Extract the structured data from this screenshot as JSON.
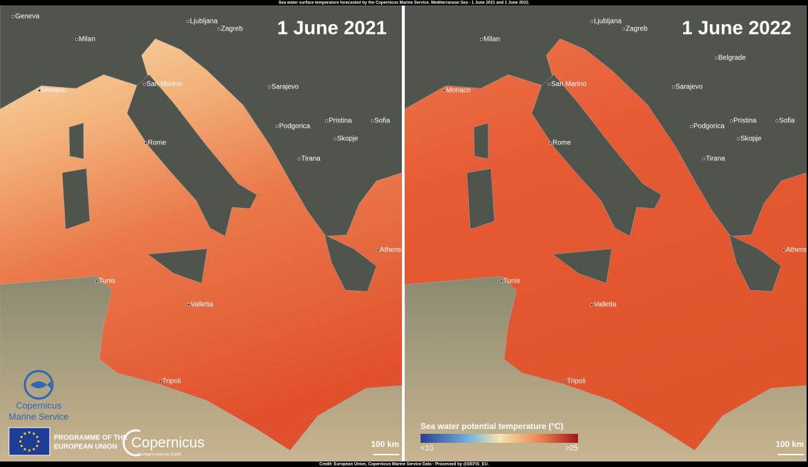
{
  "header": {
    "caption": "Sea water surface temperature forecasted by the Copernicus Marine Service. Mediterranean Sea - 1 June 2021 and 1 June 2022."
  },
  "panels": [
    {
      "title": "1 June 2021",
      "cities": [
        "Geneva",
        "Milan",
        "Ljubljana",
        "Zagreb",
        "Monaco",
        "San Marino",
        "Sarajevo",
        "Rome",
        "Podgorica",
        "Pristina",
        "Sofia",
        "Skopje",
        "Tirana",
        "Athens",
        "Tunis",
        "Valletta",
        "Tripoli"
      ],
      "scale": "100 km"
    },
    {
      "title": "1 June 2022",
      "cities": [
        "Milan",
        "Ljubljana",
        "Zagreb",
        "Belgrade",
        "Monaco",
        "San Marino",
        "Sarajevo",
        "Rome",
        "Podgorica",
        "Pristina",
        "Sofia",
        "Skopje",
        "Tirana",
        "Athens",
        "Tunis",
        "Valletta",
        "Tripoli"
      ],
      "scale": "100 km"
    }
  ],
  "legend": {
    "title": "Sea water potential temperature  (°C)",
    "min_label": "<10",
    "max_label": ">25"
  },
  "logos": {
    "marine_line1": "Copernicus",
    "marine_line2": "Marine Service",
    "eu_line1": "PROGRAMME OF THE",
    "eu_line2": "EUROPEAN UNION",
    "copernicus": "Copernicus",
    "copernicus_tagline": "Europe's eyes on Earth"
  },
  "footer": {
    "credit": "Credit: European Union, Copernicus  Marine Service Data - Processed by @DEFIS_EU."
  }
}
